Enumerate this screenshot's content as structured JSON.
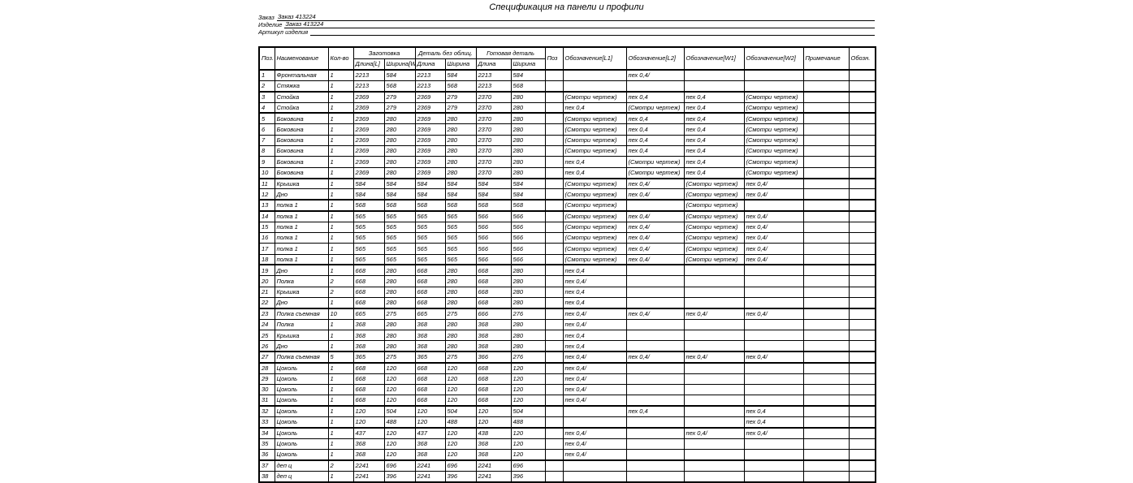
{
  "title": "Спецификация на панели и профили",
  "meta": [
    {
      "label": "Заказ",
      "value": "Заказ 413224"
    },
    {
      "label": "Изделие",
      "value": "Заказ 413224"
    },
    {
      "label": "Артикул изделия",
      "value": ""
    }
  ],
  "table": {
    "columns": {
      "pos": "Поз.",
      "name": "Наименование",
      "qty": "Кол-во",
      "group_blank": "Заготовка",
      "group_part": "Деталь без облиц.",
      "group_final": "Готовая деталь",
      "blank_len": "Длина[L]",
      "blank_wid": "Ширина[W]",
      "part_len": "Длина",
      "part_wid": "Ширина",
      "final_len": "Длина",
      "final_wid": "Ширина",
      "pos2": "Поз",
      "l1": "Обозначение[L1]",
      "l2": "Обозначение[L2]",
      "w1": "Обозначение[W1]",
      "w2": "Обозначение[W2]",
      "note": "Примечание",
      "sign": "Обозн."
    },
    "col_keys": [
      "pos",
      "name",
      "qty",
      "blank_len",
      "blank_wid",
      "part_len",
      "part_wid",
      "final_len",
      "final_wid",
      "pos2",
      "l1",
      "l2",
      "w1",
      "w2",
      "note",
      "sign"
    ],
    "group_separators_after": [
      2,
      4,
      10,
      12,
      13,
      18,
      22,
      26,
      27,
      31,
      33,
      36
    ],
    "rows": [
      [
        "1",
        "Фронтальная",
        "1",
        "2213",
        "584",
        "2213",
        "584",
        "2213",
        "584",
        "",
        "",
        "пех 0,4/",
        "",
        "",
        "",
        ""
      ],
      [
        "2",
        "Стяжка",
        "1",
        "2213",
        "568",
        "2213",
        "568",
        "2213",
        "568",
        "",
        "",
        "",
        "",
        "",
        "",
        ""
      ],
      [
        "3",
        "Стойка",
        "1",
        "2369",
        "279",
        "2369",
        "279",
        "2370",
        "280",
        "",
        "(Смотри чертеж)",
        "пех 0,4",
        "пех 0,4",
        "(Смотри чертеж)",
        "",
        ""
      ],
      [
        "4",
        "Стойка",
        "1",
        "2369",
        "279",
        "2369",
        "279",
        "2370",
        "280",
        "",
        "пех 0,4",
        "(Смотри чертеж)",
        "пех 0,4",
        "(Смотри чертеж)",
        "",
        ""
      ],
      [
        "5",
        "Боковина",
        "1",
        "2369",
        "280",
        "2369",
        "280",
        "2370",
        "280",
        "",
        "(Смотри чертеж)",
        "пех 0,4",
        "пех 0,4",
        "(Смотри чертеж)",
        "",
        ""
      ],
      [
        "6",
        "Боковина",
        "1",
        "2369",
        "280",
        "2369",
        "280",
        "2370",
        "280",
        "",
        "(Смотри чертеж)",
        "пех 0,4",
        "пех 0,4",
        "(Смотри чертеж)",
        "",
        ""
      ],
      [
        "7",
        "Боковина",
        "1",
        "2369",
        "280",
        "2369",
        "280",
        "2370",
        "280",
        "",
        "(Смотри чертеж)",
        "пех 0,4",
        "пех 0,4",
        "(Смотри чертеж)",
        "",
        ""
      ],
      [
        "8",
        "Боковина",
        "1",
        "2369",
        "280",
        "2369",
        "280",
        "2370",
        "280",
        "",
        "(Смотри чертеж)",
        "пех 0,4",
        "пех 0,4",
        "(Смотри чертеж)",
        "",
        ""
      ],
      [
        "9",
        "Боковина",
        "1",
        "2369",
        "280",
        "2369",
        "280",
        "2370",
        "280",
        "",
        "пех 0,4",
        "(Смотри чертеж)",
        "пех 0,4",
        "(Смотри чертеж)",
        "",
        ""
      ],
      [
        "10",
        "Боковина",
        "1",
        "2369",
        "280",
        "2369",
        "280",
        "2370",
        "280",
        "",
        "пех 0,4",
        "(Смотри чертеж)",
        "пех 0,4",
        "(Смотри чертеж)",
        "",
        ""
      ],
      [
        "11",
        "Крышка",
        "1",
        "584",
        "584",
        "584",
        "584",
        "584",
        "584",
        "",
        "(Смотри чертеж)",
        "пех 0,4/",
        "(Смотри чертеж)",
        "пех 0,4/",
        "",
        ""
      ],
      [
        "12",
        "Дно",
        "1",
        "584",
        "584",
        "584",
        "584",
        "584",
        "584",
        "",
        "(Смотри чертеж)",
        "пех 0,4/",
        "(Смотри чертеж)",
        "пех 0,4/",
        "",
        ""
      ],
      [
        "13",
        "полка 1",
        "1",
        "568",
        "568",
        "568",
        "568",
        "568",
        "568",
        "",
        "(Смотри чертеж)",
        "",
        "(Смотри чертеж)",
        "",
        "",
        ""
      ],
      [
        "14",
        "полка 1",
        "1",
        "565",
        "565",
        "565",
        "565",
        "566",
        "566",
        "",
        "(Смотри чертеж)",
        "пех 0,4/",
        "(Смотри чертеж)",
        "пех 0,4/",
        "",
        ""
      ],
      [
        "15",
        "полка 1",
        "1",
        "565",
        "565",
        "565",
        "565",
        "566",
        "566",
        "",
        "(Смотри чертеж)",
        "пех 0,4/",
        "(Смотри чертеж)",
        "пех 0,4/",
        "",
        ""
      ],
      [
        "16",
        "полка 1",
        "1",
        "565",
        "565",
        "565",
        "565",
        "566",
        "566",
        "",
        "(Смотри чертеж)",
        "пех 0,4/",
        "(Смотри чертеж)",
        "пех 0,4/",
        "",
        ""
      ],
      [
        "17",
        "полка 1",
        "1",
        "565",
        "565",
        "565",
        "565",
        "566",
        "566",
        "",
        "(Смотри чертеж)",
        "пех 0,4/",
        "(Смотри чертеж)",
        "пех 0,4/",
        "",
        ""
      ],
      [
        "18",
        "полка 1",
        "1",
        "565",
        "565",
        "565",
        "565",
        "566",
        "566",
        "",
        "(Смотри чертеж)",
        "пех 0,4/",
        "(Смотри чертеж)",
        "пех 0,4/",
        "",
        ""
      ],
      [
        "19",
        "Дно",
        "1",
        "668",
        "280",
        "668",
        "280",
        "668",
        "280",
        "",
        "пех 0,4",
        "",
        "",
        "",
        "",
        ""
      ],
      [
        "20",
        "Полка",
        "2",
        "668",
        "280",
        "668",
        "280",
        "668",
        "280",
        "",
        "пех 0,4/",
        "",
        "",
        "",
        "",
        ""
      ],
      [
        "21",
        "Крышка",
        "2",
        "668",
        "280",
        "668",
        "280",
        "668",
        "280",
        "",
        "пех 0,4",
        "",
        "",
        "",
        "",
        ""
      ],
      [
        "22",
        "Дно",
        "1",
        "668",
        "280",
        "668",
        "280",
        "668",
        "280",
        "",
        "пех 0,4",
        "",
        "",
        "",
        "",
        ""
      ],
      [
        "23",
        "Полка съемная",
        "10",
        "665",
        "275",
        "665",
        "275",
        "666",
        "276",
        "",
        "пех 0,4/",
        "пех 0,4/",
        "пех 0,4/",
        "пех 0,4/",
        "",
        ""
      ],
      [
        "24",
        "Полка",
        "1",
        "368",
        "280",
        "368",
        "280",
        "368",
        "280",
        "",
        "пех 0,4/",
        "",
        "",
        "",
        "",
        ""
      ],
      [
        "25",
        "Крышка",
        "1",
        "368",
        "280",
        "368",
        "280",
        "368",
        "280",
        "",
        "пех 0,4",
        "",
        "",
        "",
        "",
        ""
      ],
      [
        "26",
        "Дно",
        "1",
        "368",
        "280",
        "368",
        "280",
        "368",
        "280",
        "",
        "пех 0,4",
        "",
        "",
        "",
        "",
        ""
      ],
      [
        "27",
        "Полка съемная",
        "5",
        "365",
        "275",
        "365",
        "275",
        "366",
        "276",
        "",
        "пех 0,4/",
        "пех 0,4/",
        "пех 0,4/",
        "пех 0,4/",
        "",
        ""
      ],
      [
        "28",
        "Цоколь",
        "1",
        "668",
        "120",
        "668",
        "120",
        "668",
        "120",
        "",
        "пех 0,4/",
        "",
        "",
        "",
        "",
        ""
      ],
      [
        "29",
        "Цоколь",
        "1",
        "668",
        "120",
        "668",
        "120",
        "668",
        "120",
        "",
        "пех 0,4/",
        "",
        "",
        "",
        "",
        ""
      ],
      [
        "30",
        "Цоколь",
        "1",
        "668",
        "120",
        "668",
        "120",
        "668",
        "120",
        "",
        "пех 0,4/",
        "",
        "",
        "",
        "",
        ""
      ],
      [
        "31",
        "Цоколь",
        "1",
        "668",
        "120",
        "668",
        "120",
        "668",
        "120",
        "",
        "пех 0,4/",
        "",
        "",
        "",
        "",
        ""
      ],
      [
        "32",
        "Цоколь",
        "1",
        "120",
        "504",
        "120",
        "504",
        "120",
        "504",
        "",
        "",
        "пех 0,4",
        "",
        "пех 0,4",
        "",
        ""
      ],
      [
        "33",
        "Цоколь",
        "1",
        "120",
        "488",
        "120",
        "488",
        "120",
        "488",
        "",
        "",
        "",
        "",
        "пех 0,4",
        "",
        ""
      ],
      [
        "34",
        "Цоколь",
        "1",
        "437",
        "120",
        "437",
        "120",
        "438",
        "120",
        "",
        "пех 0,4/",
        "",
        "пех 0,4/",
        "пех 0,4/",
        "",
        ""
      ],
      [
        "35",
        "Цоколь",
        "1",
        "368",
        "120",
        "368",
        "120",
        "368",
        "120",
        "",
        "пех 0,4/",
        "",
        "",
        "",
        "",
        ""
      ],
      [
        "36",
        "Цоколь",
        "1",
        "368",
        "120",
        "368",
        "120",
        "368",
        "120",
        "",
        "пех 0,4/",
        "",
        "",
        "",
        "",
        ""
      ],
      [
        "37",
        "деп ц",
        "2",
        "2241",
        "696",
        "2241",
        "696",
        "2241",
        "696",
        "",
        "",
        "",
        "",
        "",
        "",
        ""
      ],
      [
        "38",
        "деп ц",
        "1",
        "2241",
        "396",
        "2241",
        "396",
        "2241",
        "396",
        "",
        "",
        "",
        "",
        "",
        "",
        ""
      ]
    ]
  }
}
